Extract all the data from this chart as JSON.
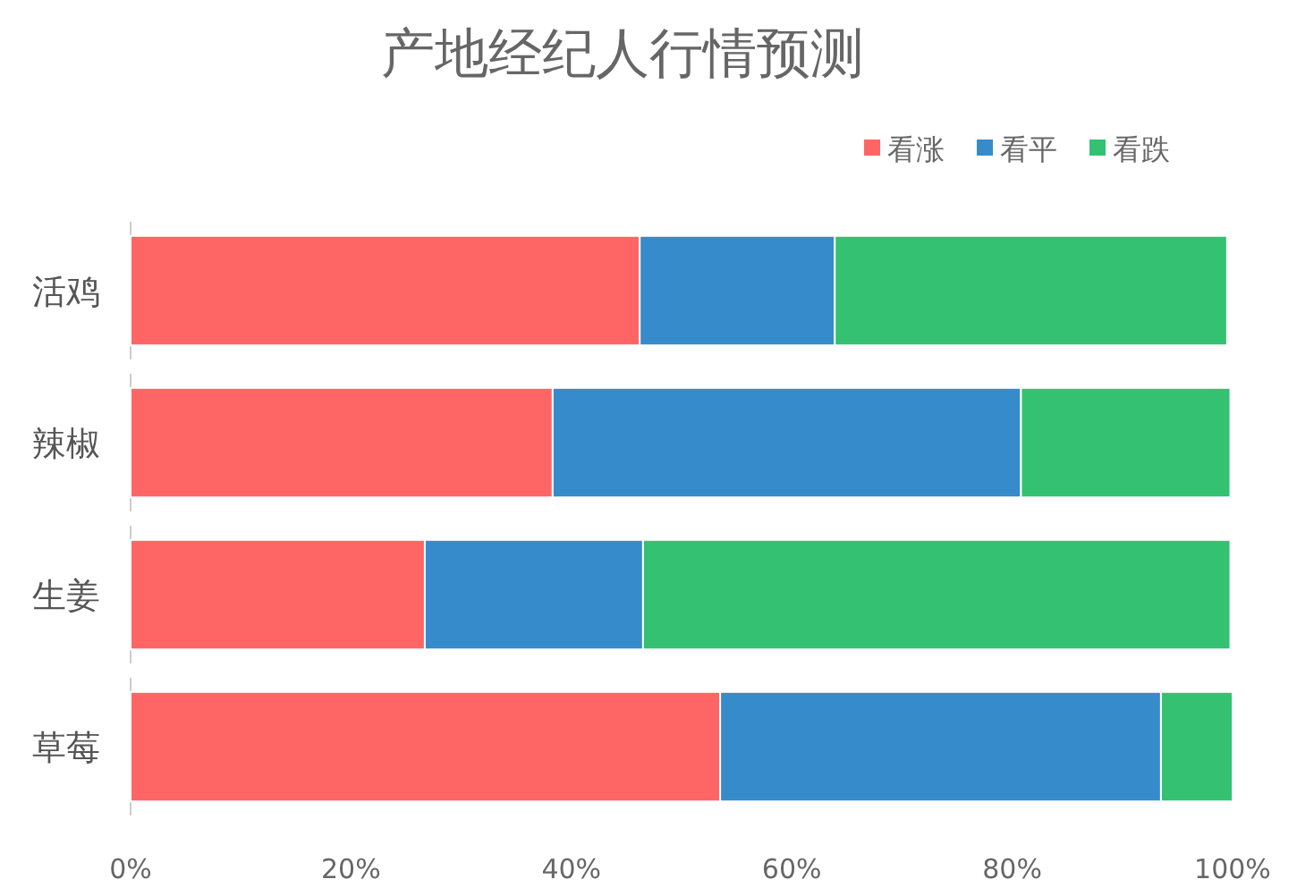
{
  "chart_data": {
    "type": "bar",
    "orientation": "horizontal",
    "stacked": true,
    "title": "产地经纪人行情预测",
    "categories": [
      "活鸡",
      "辣椒",
      "生姜",
      "草莓"
    ],
    "series": [
      {
        "name": "看涨",
        "color": "#fe6666",
        "values": [
          46.2,
          38.3,
          26.7,
          53.5
        ]
      },
      {
        "name": "看平",
        "color": "#368bcb",
        "values": [
          17.7,
          42.5,
          19.8,
          40
        ]
      },
      {
        "name": "看跌",
        "color": "#34c172",
        "values": [
          35.6,
          19,
          53.3,
          6.5
        ]
      }
    ],
    "xlim": [
      0,
      100
    ],
    "xticks": [
      {
        "value": 0,
        "label": "0%"
      },
      {
        "value": 20,
        "label": "20%"
      },
      {
        "value": 40,
        "label": "40%"
      },
      {
        "value": 60,
        "label": "60%"
      },
      {
        "value": 80,
        "label": "80%"
      },
      {
        "value": 100,
        "label": "100%"
      }
    ],
    "legend": "top right",
    "grid": false
  }
}
